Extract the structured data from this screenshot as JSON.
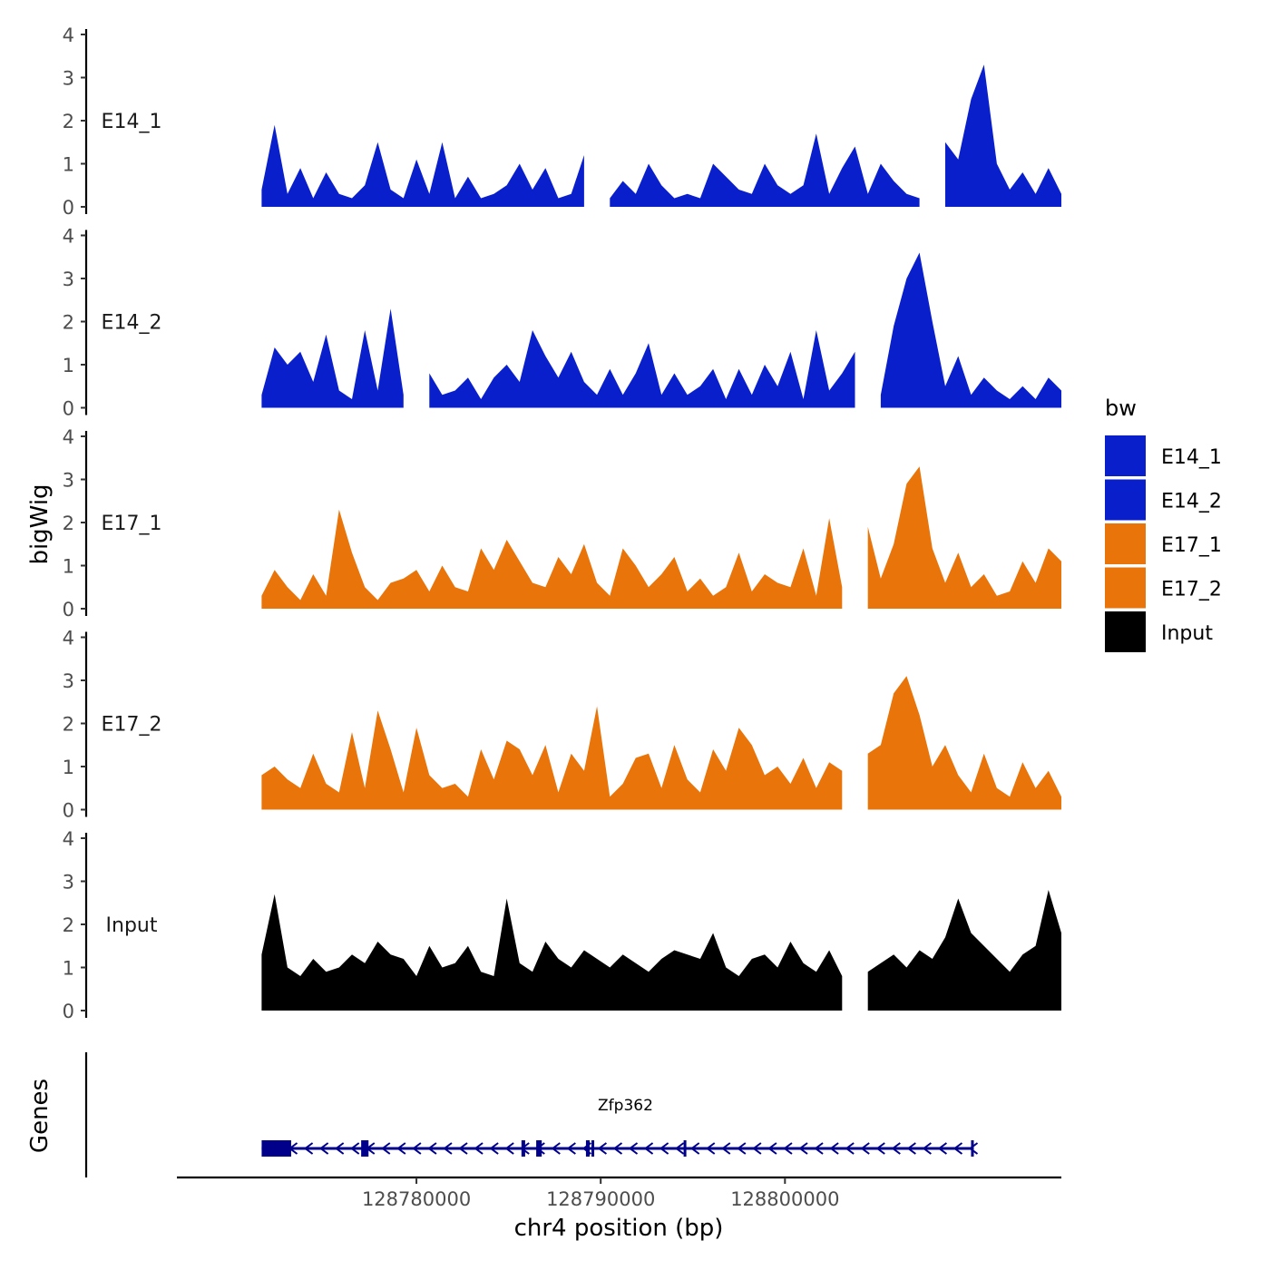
{
  "chart_data": {
    "type": "area",
    "y_axis_title": "bigWig",
    "genes_axis_title": "Genes",
    "xlabel": "chr4 position (bp)",
    "xlim": [
      128767000,
      128815000
    ],
    "x_ticks": [
      128780000,
      128790000,
      128800000
    ],
    "x_tick_labels": [
      "128780000",
      "128790000",
      "128800000"
    ],
    "ylim": [
      0,
      4
    ],
    "y_ticks": [
      0,
      1,
      2,
      3,
      4
    ],
    "legend": {
      "title": "bw",
      "position": "right",
      "items": [
        {
          "label": "E14_1",
          "color": "#0A1FCC"
        },
        {
          "label": "E14_2",
          "color": "#0A1FCC"
        },
        {
          "label": "E17_1",
          "color": "#E8740A"
        },
        {
          "label": "E17_2",
          "color": "#E8740A"
        },
        {
          "label": "Input",
          "color": "#000000"
        }
      ]
    },
    "x": [
      128771600,
      128772300,
      128773000,
      128773700,
      128774400,
      128775100,
      128775800,
      128776500,
      128777200,
      128777900,
      128778600,
      128779300,
      128780000,
      128780700,
      128781400,
      128782100,
      128782800,
      128783500,
      128784200,
      128784900,
      128785600,
      128786300,
      128787000,
      128787700,
      128788400,
      128789100,
      128789800,
      128790500,
      128791200,
      128791900,
      128792600,
      128793300,
      128794000,
      128794700,
      128795400,
      128796100,
      128796800,
      128797500,
      128798200,
      128798900,
      128799600,
      128800300,
      128801000,
      128801700,
      128802400,
      128803100,
      128803800,
      128804500,
      128805200,
      128805900,
      128806600,
      128807300,
      128808000,
      128808700,
      128809400,
      128810100,
      128810800,
      128811500,
      128812200,
      128812900,
      128813600,
      128814300,
      128815000
    ],
    "series": [
      {
        "name": "E14_1",
        "values": [
          0.4,
          1.9,
          0.3,
          0.9,
          0.2,
          0.8,
          0.3,
          0.2,
          0.5,
          1.5,
          0.4,
          0.2,
          1.1,
          0.3,
          1.5,
          0.2,
          0.7,
          0.2,
          0.3,
          0.5,
          1.0,
          0.4,
          0.9,
          0.2,
          0.3,
          1.2,
          0,
          0.2,
          0.6,
          0.3,
          1.0,
          0.5,
          0.2,
          0.3,
          0.2,
          1.0,
          0.7,
          0.4,
          0.3,
          1.0,
          0.5,
          0.3,
          0.5,
          1.7,
          0.3,
          0.9,
          1.4,
          0.3,
          1.0,
          0.6,
          0.3,
          0.2,
          0,
          1.5,
          1.1,
          2.5,
          3.3,
          1.0,
          0.4,
          0.8,
          0.3,
          0.9,
          0.3
        ]
      },
      {
        "name": "E14_2",
        "values": [
          0.3,
          1.4,
          1.0,
          1.3,
          0.6,
          1.7,
          0.4,
          0.2,
          1.8,
          0.4,
          2.3,
          0.3,
          0,
          0.8,
          0.3,
          0.4,
          0.7,
          0.2,
          0.7,
          1.0,
          0.6,
          1.8,
          1.2,
          0.7,
          1.3,
          0.6,
          0.3,
          0.9,
          0.3,
          0.8,
          1.5,
          0.3,
          0.8,
          0.3,
          0.5,
          0.9,
          0.2,
          0.9,
          0.3,
          1.0,
          0.5,
          1.3,
          0.2,
          1.8,
          0.4,
          0.8,
          1.3,
          0,
          0.3,
          1.9,
          3.0,
          3.6,
          2.0,
          0.5,
          1.2,
          0.3,
          0.7,
          0.4,
          0.2,
          0.5,
          0.2,
          0.7,
          0.4
        ]
      },
      {
        "name": "E17_1",
        "values": [
          0.3,
          0.9,
          0.5,
          0.2,
          0.8,
          0.3,
          2.3,
          1.3,
          0.5,
          0.2,
          0.6,
          0.7,
          0.9,
          0.4,
          1.0,
          0.5,
          0.4,
          1.4,
          0.9,
          1.6,
          1.1,
          0.6,
          0.5,
          1.2,
          0.8,
          1.5,
          0.6,
          0.3,
          1.4,
          1.0,
          0.5,
          0.8,
          1.2,
          0.4,
          0.7,
          0.3,
          0.5,
          1.3,
          0.4,
          0.8,
          0.6,
          0.5,
          1.4,
          0.3,
          2.1,
          0.5,
          0,
          1.9,
          0.7,
          1.5,
          2.9,
          3.3,
          1.4,
          0.6,
          1.3,
          0.5,
          0.8,
          0.3,
          0.4,
          1.1,
          0.6,
          1.4,
          1.1
        ]
      },
      {
        "name": "E17_2",
        "values": [
          0.8,
          1.0,
          0.7,
          0.5,
          1.3,
          0.6,
          0.4,
          1.8,
          0.5,
          2.3,
          1.4,
          0.4,
          1.9,
          0.8,
          0.5,
          0.6,
          0.3,
          1.4,
          0.7,
          1.6,
          1.4,
          0.8,
          1.5,
          0.4,
          1.3,
          0.9,
          2.4,
          0.3,
          0.6,
          1.2,
          1.3,
          0.5,
          1.5,
          0.7,
          0.4,
          1.4,
          0.9,
          1.9,
          1.5,
          0.8,
          1.0,
          0.6,
          1.2,
          0.5,
          1.1,
          0.9,
          0,
          1.3,
          1.5,
          2.7,
          3.1,
          2.2,
          1.0,
          1.5,
          0.8,
          0.4,
          1.3,
          0.5,
          0.3,
          1.1,
          0.5,
          0.9,
          0.3
        ]
      },
      {
        "name": "Input",
        "values": [
          1.3,
          2.7,
          1.0,
          0.8,
          1.2,
          0.9,
          1.0,
          1.3,
          1.1,
          1.6,
          1.3,
          1.2,
          0.8,
          1.5,
          1.0,
          1.1,
          1.5,
          0.9,
          0.8,
          2.6,
          1.1,
          0.9,
          1.6,
          1.2,
          1.0,
          1.4,
          1.2,
          1.0,
          1.3,
          1.1,
          0.9,
          1.2,
          1.4,
          1.3,
          1.2,
          1.8,
          1.0,
          0.8,
          1.2,
          1.3,
          1.0,
          1.6,
          1.1,
          0.9,
          1.4,
          0.8,
          0,
          0.9,
          1.1,
          1.3,
          1.0,
          1.4,
          1.2,
          1.7,
          2.6,
          1.8,
          1.5,
          1.2,
          0.9,
          1.3,
          1.5,
          2.8,
          1.8
        ]
      }
    ],
    "gene": {
      "name": "Zfp362",
      "strand": "-",
      "start": 128771600,
      "end": 128810200,
      "color": "#00008B",
      "exons": [
        [
          128771600,
          128773200
        ],
        [
          128777000,
          128777400
        ],
        [
          128785700,
          128785900
        ],
        [
          128786500,
          128786800
        ],
        [
          128789200,
          128789400
        ],
        [
          128789500,
          128789600
        ],
        [
          128794500,
          128794600
        ],
        [
          128810100,
          128810200
        ]
      ]
    }
  }
}
